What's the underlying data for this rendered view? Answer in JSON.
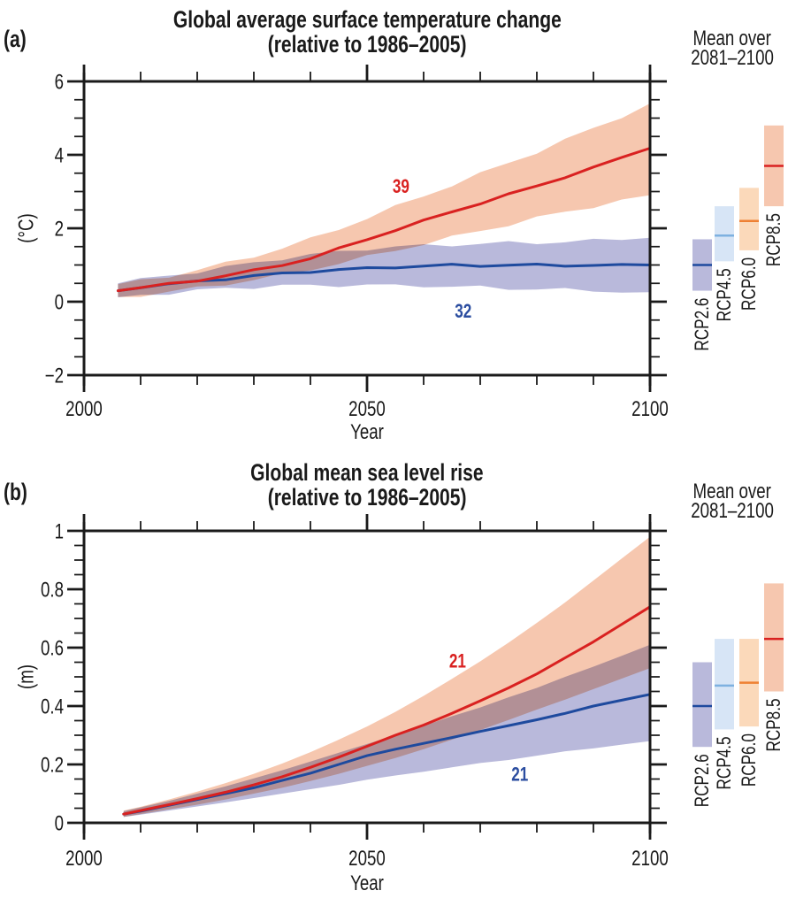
{
  "figure_background": "#ffffff",
  "chart_data": [
    {
      "type": "area",
      "panel_label": "(a)",
      "title": "Global average surface temperature change (relative to 1986–2005)",
      "title_lines": [
        "Global average surface temperature change",
        "(relative to 1986–2005)"
      ],
      "xlabel": "Year",
      "ylabel": "(°C)",
      "xlim": [
        2000,
        2100
      ],
      "ylim": [
        -2,
        6
      ],
      "grid": false,
      "x_major_ticks": [
        2000,
        2050,
        2100
      ],
      "x_tick_labels": [
        "2000",
        "2050",
        "2100"
      ],
      "x_minor_step": 10,
      "y_major_ticks": [
        -2,
        0,
        2,
        4,
        6
      ],
      "y_tick_labels": [
        "−2",
        "0",
        "2",
        "4",
        "6"
      ],
      "y_minor_step": 0.5,
      "wiggle": true,
      "x": [
        2006,
        2010,
        2015,
        2020,
        2025,
        2030,
        2035,
        2040,
        2045,
        2050,
        2055,
        2060,
        2065,
        2070,
        2075,
        2080,
        2085,
        2090,
        2095,
        2100
      ],
      "series": [
        {
          "name": "RCP2.6",
          "line_color": "#1e4a9e",
          "band_color": "#b9b9db",
          "model_count": 32,
          "count_label_x": 2067,
          "count_label_y": -0.25,
          "count_color": "#2b4da0",
          "mean": [
            0.3,
            0.4,
            0.47,
            0.56,
            0.62,
            0.7,
            0.77,
            0.82,
            0.87,
            0.91,
            0.94,
            0.97,
            1.0,
            0.98,
            1.0,
            1.0,
            0.98,
            1.0,
            0.99,
            1.0
          ],
          "low": [
            0.12,
            0.18,
            0.24,
            0.3,
            0.36,
            0.4,
            0.44,
            0.43,
            0.45,
            0.46,
            0.43,
            0.44,
            0.41,
            0.39,
            0.36,
            0.35,
            0.32,
            0.3,
            0.28,
            0.26
          ],
          "high": [
            0.5,
            0.6,
            0.7,
            0.82,
            0.94,
            1.05,
            1.18,
            1.28,
            1.35,
            1.44,
            1.5,
            1.52,
            1.55,
            1.58,
            1.6,
            1.6,
            1.64,
            1.66,
            1.7,
            1.74
          ]
        },
        {
          "name": "RCP8.5",
          "line_color": "#d92120",
          "band_color": "#f6c7af",
          "model_count": 39,
          "count_label_x": 2056,
          "count_label_y": 3.15,
          "count_color": "#d92120",
          "mean": [
            0.3,
            0.38,
            0.48,
            0.58,
            0.71,
            0.85,
            1.0,
            1.18,
            1.44,
            1.7,
            1.95,
            2.2,
            2.45,
            2.68,
            2.92,
            3.15,
            3.4,
            3.65,
            3.92,
            4.18
          ],
          "low": [
            0.13,
            0.18,
            0.27,
            0.37,
            0.48,
            0.6,
            0.73,
            0.88,
            1.05,
            1.22,
            1.4,
            1.58,
            1.75,
            1.93,
            2.1,
            2.28,
            2.44,
            2.6,
            2.75,
            2.9
          ],
          "high": [
            0.48,
            0.57,
            0.7,
            0.86,
            1.04,
            1.24,
            1.46,
            1.7,
            1.98,
            2.28,
            2.58,
            2.88,
            3.18,
            3.48,
            3.78,
            4.08,
            4.4,
            4.72,
            5.05,
            5.4
          ]
        }
      ],
      "sidebar": {
        "heading_lines": [
          "Mean over",
          "2081–2100"
        ],
        "bars": [
          {
            "name": "RCP2.6",
            "low": 0.3,
            "high": 1.7,
            "mean": 1.0,
            "band_color": "#b9b9db",
            "mean_color": "#1e4a9e"
          },
          {
            "name": "RCP4.5",
            "low": 1.1,
            "high": 2.6,
            "mean": 1.8,
            "band_color": "#d7e5f6",
            "mean_color": "#7eb1e0"
          },
          {
            "name": "RCP6.0",
            "low": 1.4,
            "high": 3.1,
            "mean": 2.2,
            "band_color": "#fbd9ba",
            "mean_color": "#ee8033"
          },
          {
            "name": "RCP8.5",
            "low": 2.6,
            "high": 4.8,
            "mean": 3.7,
            "band_color": "#f6c7af",
            "mean_color": "#d92120"
          }
        ]
      }
    },
    {
      "type": "area",
      "panel_label": "(b)",
      "title": "Global mean sea level rise (relative to 1986–2005)",
      "title_lines": [
        "Global mean sea level rise",
        "(relative to 1986–2005)"
      ],
      "xlabel": "Year",
      "ylabel": "(m)",
      "xlim": [
        2000,
        2100
      ],
      "ylim": [
        0,
        1
      ],
      "grid": false,
      "x_major_ticks": [
        2000,
        2050,
        2100
      ],
      "x_tick_labels": [
        "2000",
        "2050",
        "2100"
      ],
      "x_minor_step": 10,
      "y_major_ticks": [
        0,
        0.2,
        0.4,
        0.6,
        0.8,
        1
      ],
      "y_tick_labels": [
        "0",
        "0.2",
        "0.4",
        "0.6",
        "0.8",
        "1"
      ],
      "y_minor_step": 0.05,
      "wiggle": false,
      "x": [
        2007,
        2010,
        2015,
        2020,
        2025,
        2030,
        2035,
        2040,
        2045,
        2050,
        2055,
        2060,
        2065,
        2070,
        2075,
        2080,
        2085,
        2090,
        2095,
        2100
      ],
      "series": [
        {
          "name": "RCP2.6",
          "line_color": "#1e4a9e",
          "band_color": "#b9b9db",
          "model_count": 21,
          "count_label_x": 2077,
          "count_label_y": 0.168,
          "count_color": "#2b4da0",
          "mean": [
            0.03,
            0.04,
            0.06,
            0.08,
            0.1,
            0.12,
            0.145,
            0.17,
            0.2,
            0.23,
            0.252,
            0.272,
            0.292,
            0.313,
            0.333,
            0.353,
            0.375,
            0.4,
            0.42,
            0.44
          ],
          "low": [
            0.02,
            0.028,
            0.042,
            0.056,
            0.07,
            0.085,
            0.1,
            0.115,
            0.13,
            0.148,
            0.162,
            0.175,
            0.19,
            0.205,
            0.215,
            0.23,
            0.245,
            0.255,
            0.268,
            0.28
          ],
          "high": [
            0.04,
            0.053,
            0.075,
            0.1,
            0.125,
            0.152,
            0.18,
            0.21,
            0.24,
            0.27,
            0.3,
            0.332,
            0.365,
            0.395,
            0.43,
            0.462,
            0.5,
            0.535,
            0.572,
            0.61
          ]
        },
        {
          "name": "RCP8.5",
          "line_color": "#d92120",
          "band_color": "#f6c7af",
          "model_count": 21,
          "count_label_x": 2066,
          "count_label_y": 0.555,
          "count_color": "#d92120",
          "mean": [
            0.03,
            0.042,
            0.062,
            0.083,
            0.105,
            0.13,
            0.158,
            0.19,
            0.225,
            0.262,
            0.3,
            0.335,
            0.375,
            0.418,
            0.462,
            0.51,
            0.565,
            0.62,
            0.68,
            0.74
          ],
          "low": [
            0.02,
            0.03,
            0.046,
            0.062,
            0.08,
            0.1,
            0.12,
            0.143,
            0.168,
            0.195,
            0.222,
            0.252,
            0.285,
            0.318,
            0.352,
            0.388,
            0.422,
            0.458,
            0.494,
            0.53
          ],
          "high": [
            0.042,
            0.055,
            0.08,
            0.107,
            0.136,
            0.168,
            0.203,
            0.242,
            0.285,
            0.33,
            0.38,
            0.435,
            0.493,
            0.553,
            0.617,
            0.685,
            0.755,
            0.83,
            0.905,
            0.98
          ]
        }
      ],
      "sidebar": {
        "heading_lines": [
          "Mean over",
          "2081–2100"
        ],
        "bars": [
          {
            "name": "RCP2.6",
            "low": 0.26,
            "high": 0.55,
            "mean": 0.4,
            "band_color": "#b9b9db",
            "mean_color": "#1e4a9e"
          },
          {
            "name": "RCP4.5",
            "low": 0.32,
            "high": 0.63,
            "mean": 0.47,
            "band_color": "#d7e5f6",
            "mean_color": "#7eb1e0"
          },
          {
            "name": "RCP6.0",
            "low": 0.33,
            "high": 0.63,
            "mean": 0.48,
            "band_color": "#fbd9ba",
            "mean_color": "#ee8033"
          },
          {
            "name": "RCP8.5",
            "low": 0.45,
            "high": 0.82,
            "mean": 0.63,
            "band_color": "#f6c7af",
            "mean_color": "#d92120"
          }
        ]
      }
    }
  ]
}
